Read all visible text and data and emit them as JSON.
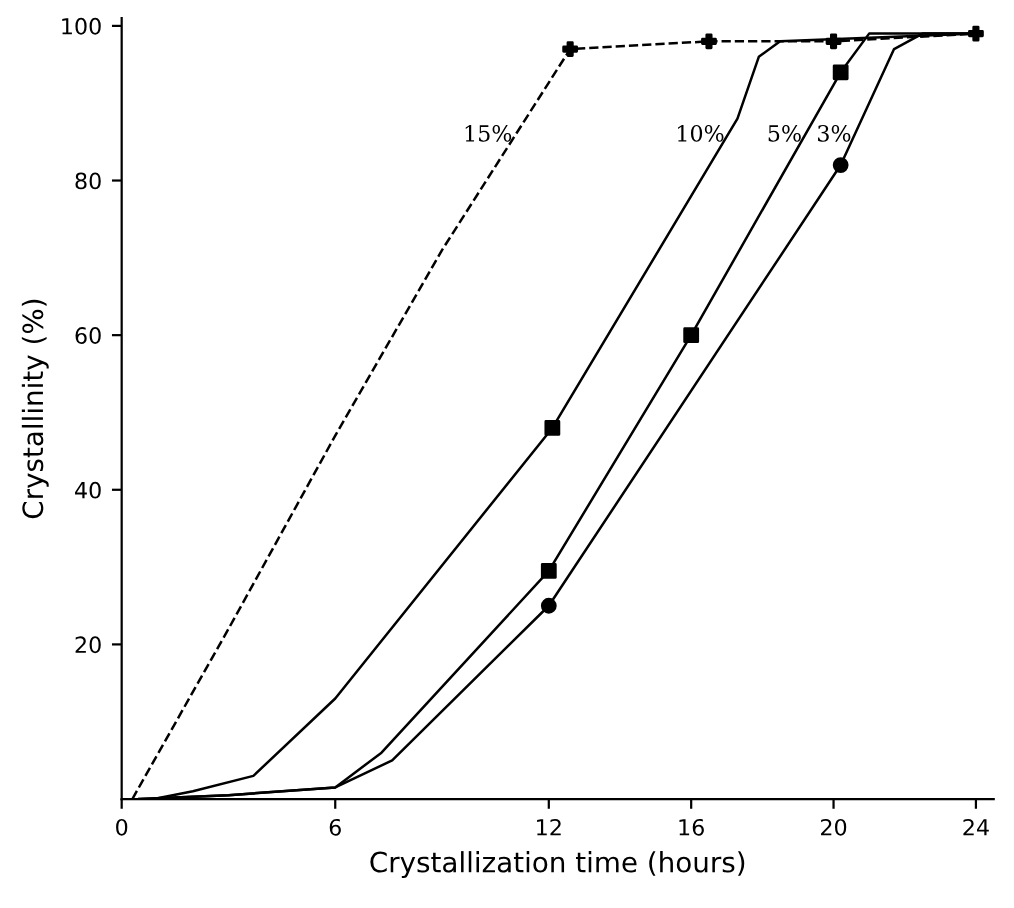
{
  "chart_data": {
    "type": "line",
    "xlabel": "Crystallization time (hours)",
    "ylabel": "Crystallinity (%)",
    "xlim": [
      0,
      24.5
    ],
    "ylim": [
      0,
      101
    ],
    "xticks": [
      0,
      6,
      12,
      16,
      20,
      24
    ],
    "yticks": [
      20,
      40,
      60,
      80,
      100
    ],
    "grid": false,
    "legend": false,
    "series": [
      {
        "name": "15%",
        "line_style": "dashed",
        "marker": "none",
        "color": "#000000",
        "x": [
          0.3,
          3,
          6,
          9,
          12.6,
          16.5,
          20,
          24
        ],
        "values": [
          0,
          22,
          47,
          71,
          97,
          98,
          98,
          99
        ]
      },
      {
        "name": "10%",
        "line_style": "solid",
        "marker": "none",
        "color": "#000000",
        "x": [
          0.9,
          2,
          3.7,
          6,
          12.1,
          17.3,
          17.9,
          18.5,
          24
        ],
        "values": [
          0,
          1,
          3,
          13,
          48,
          88,
          96,
          98,
          99
        ]
      },
      {
        "name": "5%",
        "line_style": "solid",
        "marker": "none",
        "color": "#000000",
        "x": [
          0.5,
          3,
          6,
          7.3,
          12,
          16,
          20.2,
          21,
          24
        ],
        "values": [
          0,
          0.5,
          1.5,
          6,
          29.5,
          60,
          94,
          99,
          99
        ]
      },
      {
        "name": "3%",
        "line_style": "solid",
        "marker": "none",
        "color": "#000000",
        "x": [
          0.5,
          3,
          6,
          7.6,
          12,
          20.2,
          21.7,
          22.5,
          24
        ],
        "values": [
          0,
          0.5,
          1.5,
          5,
          25,
          82,
          97,
          99,
          99
        ]
      },
      {
        "type": "scatter",
        "marker": "cross",
        "color": "#000000",
        "x": [
          12.6,
          16.5,
          20,
          24
        ],
        "values": [
          97,
          98,
          98,
          99
        ]
      },
      {
        "type": "scatter",
        "marker": "square",
        "color": "#000000",
        "x": [
          12.1
        ],
        "values": [
          48
        ]
      },
      {
        "type": "scatter",
        "marker": "square",
        "color": "#000000",
        "x": [
          12,
          16,
          20.2
        ],
        "values": [
          29.5,
          60,
          94
        ]
      },
      {
        "type": "scatter",
        "marker": "circle",
        "color": "#000000",
        "x": [
          12,
          20.2
        ],
        "values": [
          25,
          82
        ]
      }
    ]
  }
}
